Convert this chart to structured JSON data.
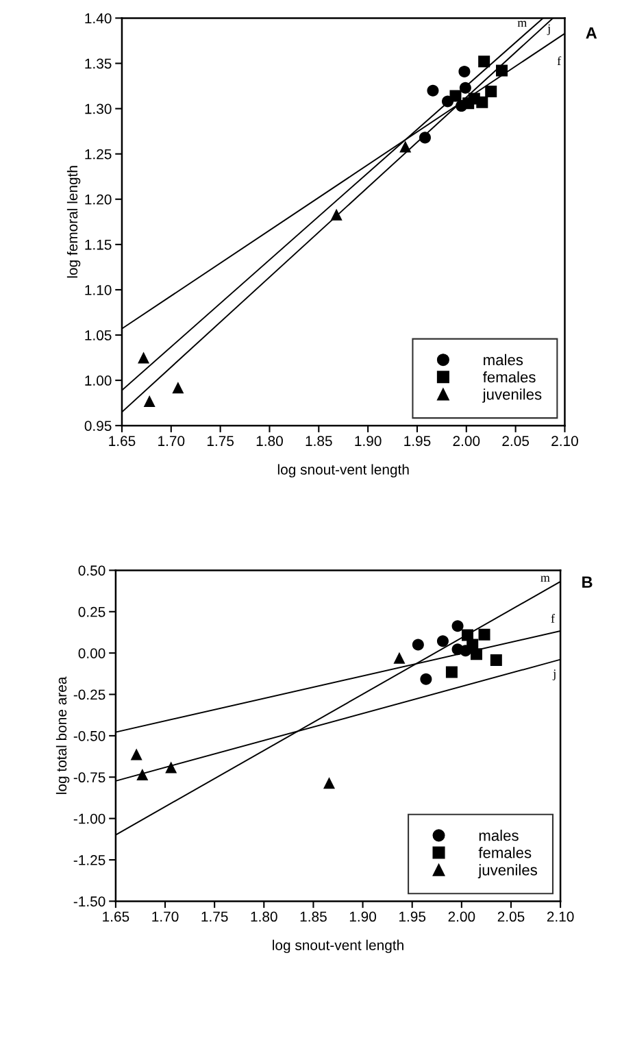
{
  "chart_data": [
    {
      "type": "scatter",
      "xlabel": "log snout-vent length",
      "ylabel": "log femoral length",
      "annotations": [
        "A"
      ],
      "xlim": [
        1.65,
        2.1
      ],
      "ylim": [
        0.95,
        1.4
      ],
      "xticks": [
        {
          "value": 1.65,
          "label": "1.65"
        },
        {
          "value": 1.7,
          "label": "1.70"
        },
        {
          "value": 1.75,
          "label": "1.75"
        },
        {
          "value": 1.8,
          "label": "1.80"
        },
        {
          "value": 1.85,
          "label": "1.85"
        },
        {
          "value": 1.9,
          "label": "1.90"
        },
        {
          "value": 1.95,
          "label": "1.95"
        },
        {
          "value": 2.0,
          "label": "2.00"
        },
        {
          "value": 2.05,
          "label": "2.05"
        },
        {
          "value": 2.1,
          "label": "2.10"
        }
      ],
      "yticks": [
        {
          "value": 0.95,
          "label": "0.95"
        },
        {
          "value": 1.0,
          "label": "1.00"
        },
        {
          "value": 1.05,
          "label": "1.05"
        },
        {
          "value": 1.1,
          "label": "1.10"
        },
        {
          "value": 1.15,
          "label": "1.15"
        },
        {
          "value": 1.2,
          "label": "1.20"
        },
        {
          "value": 1.25,
          "label": "1.25"
        },
        {
          "value": 1.3,
          "label": "1.30"
        },
        {
          "value": 1.35,
          "label": "1.35"
        },
        {
          "value": 1.4,
          "label": "1.40"
        }
      ],
      "grid": false,
      "legend": "bottom right",
      "series": [
        {
          "name": "males",
          "marker": "circle",
          "color": "#000000",
          "x": [
            1.998,
            1.966,
            1.981,
            1.995,
            1.999,
            1.958
          ],
          "values": [
            1.341,
            1.32,
            1.308,
            1.303,
            1.323,
            1.268
          ]
        },
        {
          "name": "females",
          "marker": "square",
          "color": "#000000",
          "x": [
            2.018,
            2.036,
            2.025,
            2.016,
            1.989,
            2.008,
            2.002
          ],
          "values": [
            1.352,
            1.342,
            1.319,
            1.307,
            1.314,
            1.311,
            1.306
          ]
        },
        {
          "name": "juveniles",
          "marker": "triangle",
          "color": "#000000",
          "x": [
            1.938,
            1.868,
            1.672,
            1.678,
            1.707
          ],
          "values": [
            1.258,
            1.183,
            1.025,
            0.977,
            0.992
          ]
        },
        {
          "name": "m",
          "type": "line",
          "color": "#000000",
          "x": [
            1.65,
            2.078
          ],
          "values": [
            0.989,
            1.4
          ]
        },
        {
          "name": "j",
          "type": "line",
          "color": "#000000",
          "x": [
            1.65,
            2.088
          ],
          "values": [
            0.965,
            1.4
          ]
        },
        {
          "name": "f",
          "type": "line",
          "color": "#000000",
          "x": [
            1.65,
            2.1
          ],
          "values": [
            1.057,
            1.383
          ]
        }
      ]
    },
    {
      "type": "scatter",
      "xlabel": "log snout-vent length",
      "ylabel": "log total bone area",
      "annotations": [
        "B"
      ],
      "xlim": [
        1.65,
        2.1
      ],
      "ylim": [
        -1.5,
        0.5
      ],
      "xticks": [
        {
          "value": 1.65,
          "label": "1.65"
        },
        {
          "value": 1.7,
          "label": "1.70"
        },
        {
          "value": 1.75,
          "label": "1.75"
        },
        {
          "value": 1.8,
          "label": "1.80"
        },
        {
          "value": 1.85,
          "label": "1.85"
        },
        {
          "value": 1.9,
          "label": "1.90"
        },
        {
          "value": 1.95,
          "label": "1.95"
        },
        {
          "value": 2.0,
          "label": "2.00"
        },
        {
          "value": 2.05,
          "label": "2.05"
        },
        {
          "value": 2.1,
          "label": "2.10"
        }
      ],
      "yticks": [
        {
          "value": -1.5,
          "label": "-1.50"
        },
        {
          "value": -1.25,
          "label": "-1.25"
        },
        {
          "value": -1.0,
          "label": "-1.00"
        },
        {
          "value": -0.75,
          "label": "-0.75"
        },
        {
          "value": -0.5,
          "label": "-0.50"
        },
        {
          "value": -0.25,
          "label": "-0.25"
        },
        {
          "value": 0.0,
          "label": "0.00"
        },
        {
          "value": 0.25,
          "label": "0.25"
        },
        {
          "value": 0.5,
          "label": "0.50"
        }
      ],
      "grid": false,
      "legend": "bottom right",
      "series": [
        {
          "name": "males",
          "marker": "circle",
          "color": "#000000",
          "x": [
            1.996,
            1.956,
            1.981,
            1.964,
            1.996,
            2.004
          ],
          "values": [
            0.163,
            0.05,
            0.072,
            -0.158,
            0.022,
            0.014
          ]
        },
        {
          "name": "females",
          "marker": "square",
          "color": "#000000",
          "x": [
            2.023,
            2.035,
            1.99,
            2.015,
            2.011,
            2.006
          ],
          "values": [
            0.111,
            -0.043,
            -0.115,
            -0.007,
            0.05,
            0.108
          ]
        },
        {
          "name": "juveniles",
          "marker": "triangle",
          "color": "#000000",
          "x": [
            1.937,
            1.671,
            1.677,
            1.706,
            1.866
          ],
          "values": [
            -0.029,
            -0.612,
            -0.734,
            -0.691,
            -0.785
          ]
        },
        {
          "name": "m",
          "type": "line",
          "color": "#000000",
          "x": [
            1.65,
            2.1
          ],
          "values": [
            -1.099,
            0.432
          ]
        },
        {
          "name": "f",
          "type": "line",
          "color": "#000000",
          "x": [
            1.65,
            2.1
          ],
          "values": [
            -0.478,
            0.133
          ]
        },
        {
          "name": "j",
          "type": "line",
          "color": "#000000",
          "x": [
            1.65,
            2.1
          ],
          "values": [
            -0.773,
            -0.039
          ]
        }
      ]
    }
  ]
}
